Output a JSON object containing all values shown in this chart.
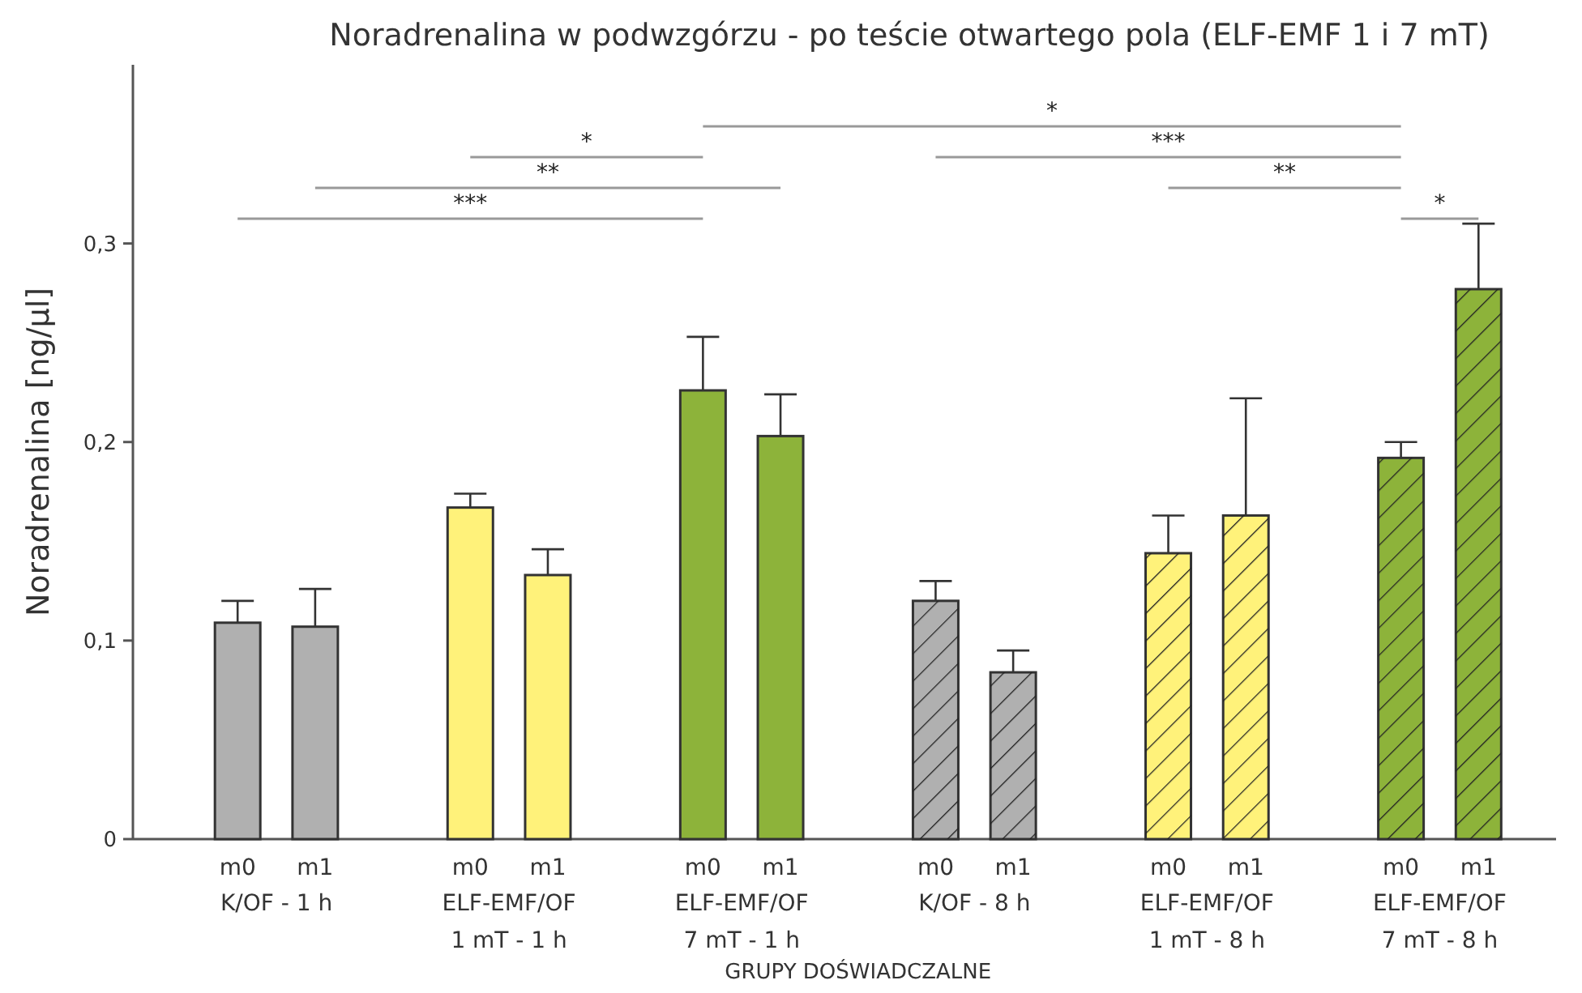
{
  "chart_data": {
    "type": "bar",
    "title": "Noradrenalina w podwzgórzu - po teście otwartego pola (ELF-EMF 1 i 7 mT)",
    "xlabel": "GRUPY DOŚWIADCZALNE",
    "ylabel": "Noradrenalina [ng/µl]",
    "categories": [
      "m0",
      "m1",
      "m0",
      "m1",
      "m0",
      "m1",
      "m0",
      "m1",
      "m0",
      "m1",
      "m0",
      "m1"
    ],
    "values": [
      0.109,
      0.107,
      0.167,
      0.133,
      0.226,
      0.203,
      0.12,
      0.084,
      0.144,
      0.163,
      0.192,
      0.277
    ],
    "errors": [
      [
        0.109,
        0.12
      ],
      [
        0.107,
        0.126
      ],
      [
        0.167,
        0.174
      ],
      [
        0.133,
        0.146
      ],
      [
        0.226,
        0.253
      ],
      [
        0.203,
        0.224
      ],
      [
        0.12,
        0.13
      ],
      [
        0.084,
        0.095
      ],
      [
        0.144,
        0.163
      ],
      [
        0.163,
        0.222
      ],
      [
        0.192,
        0.2
      ],
      [
        0.277,
        0.31
      ]
    ],
    "colors": [
      "#b0b0b0",
      "#b0b0b0",
      "#fff27a",
      "#fff27a",
      "#8db33a",
      "#8db33a",
      "#b0b0b0",
      "#b0b0b0",
      "#fff27a",
      "#fff27a",
      "#8db33a",
      "#8db33a"
    ],
    "ylim": [
      0,
      0.39
    ],
    "yticks": [
      0,
      {
        "value": 0.1,
        "label": "0,1"
      },
      {
        "value": 0.2,
        "label": "0,2"
      },
      {
        "value": 0.3,
        "label": "0,3"
      }
    ],
    "grid": false,
    "annotations": [
      "***",
      "**",
      "*",
      "*",
      "***",
      "**",
      "*",
      "K/OF - 1 h",
      "ELF-EMF/OF\n1 mT - 1 h",
      "ELF-EMF/OF\n7 mT - 1 h",
      "K/OF - 8 h",
      "ELF-EMF/OF\n1 mT - 8 h",
      "ELF-EMF/OF\n7 mT - 8 h"
    ]
  }
}
